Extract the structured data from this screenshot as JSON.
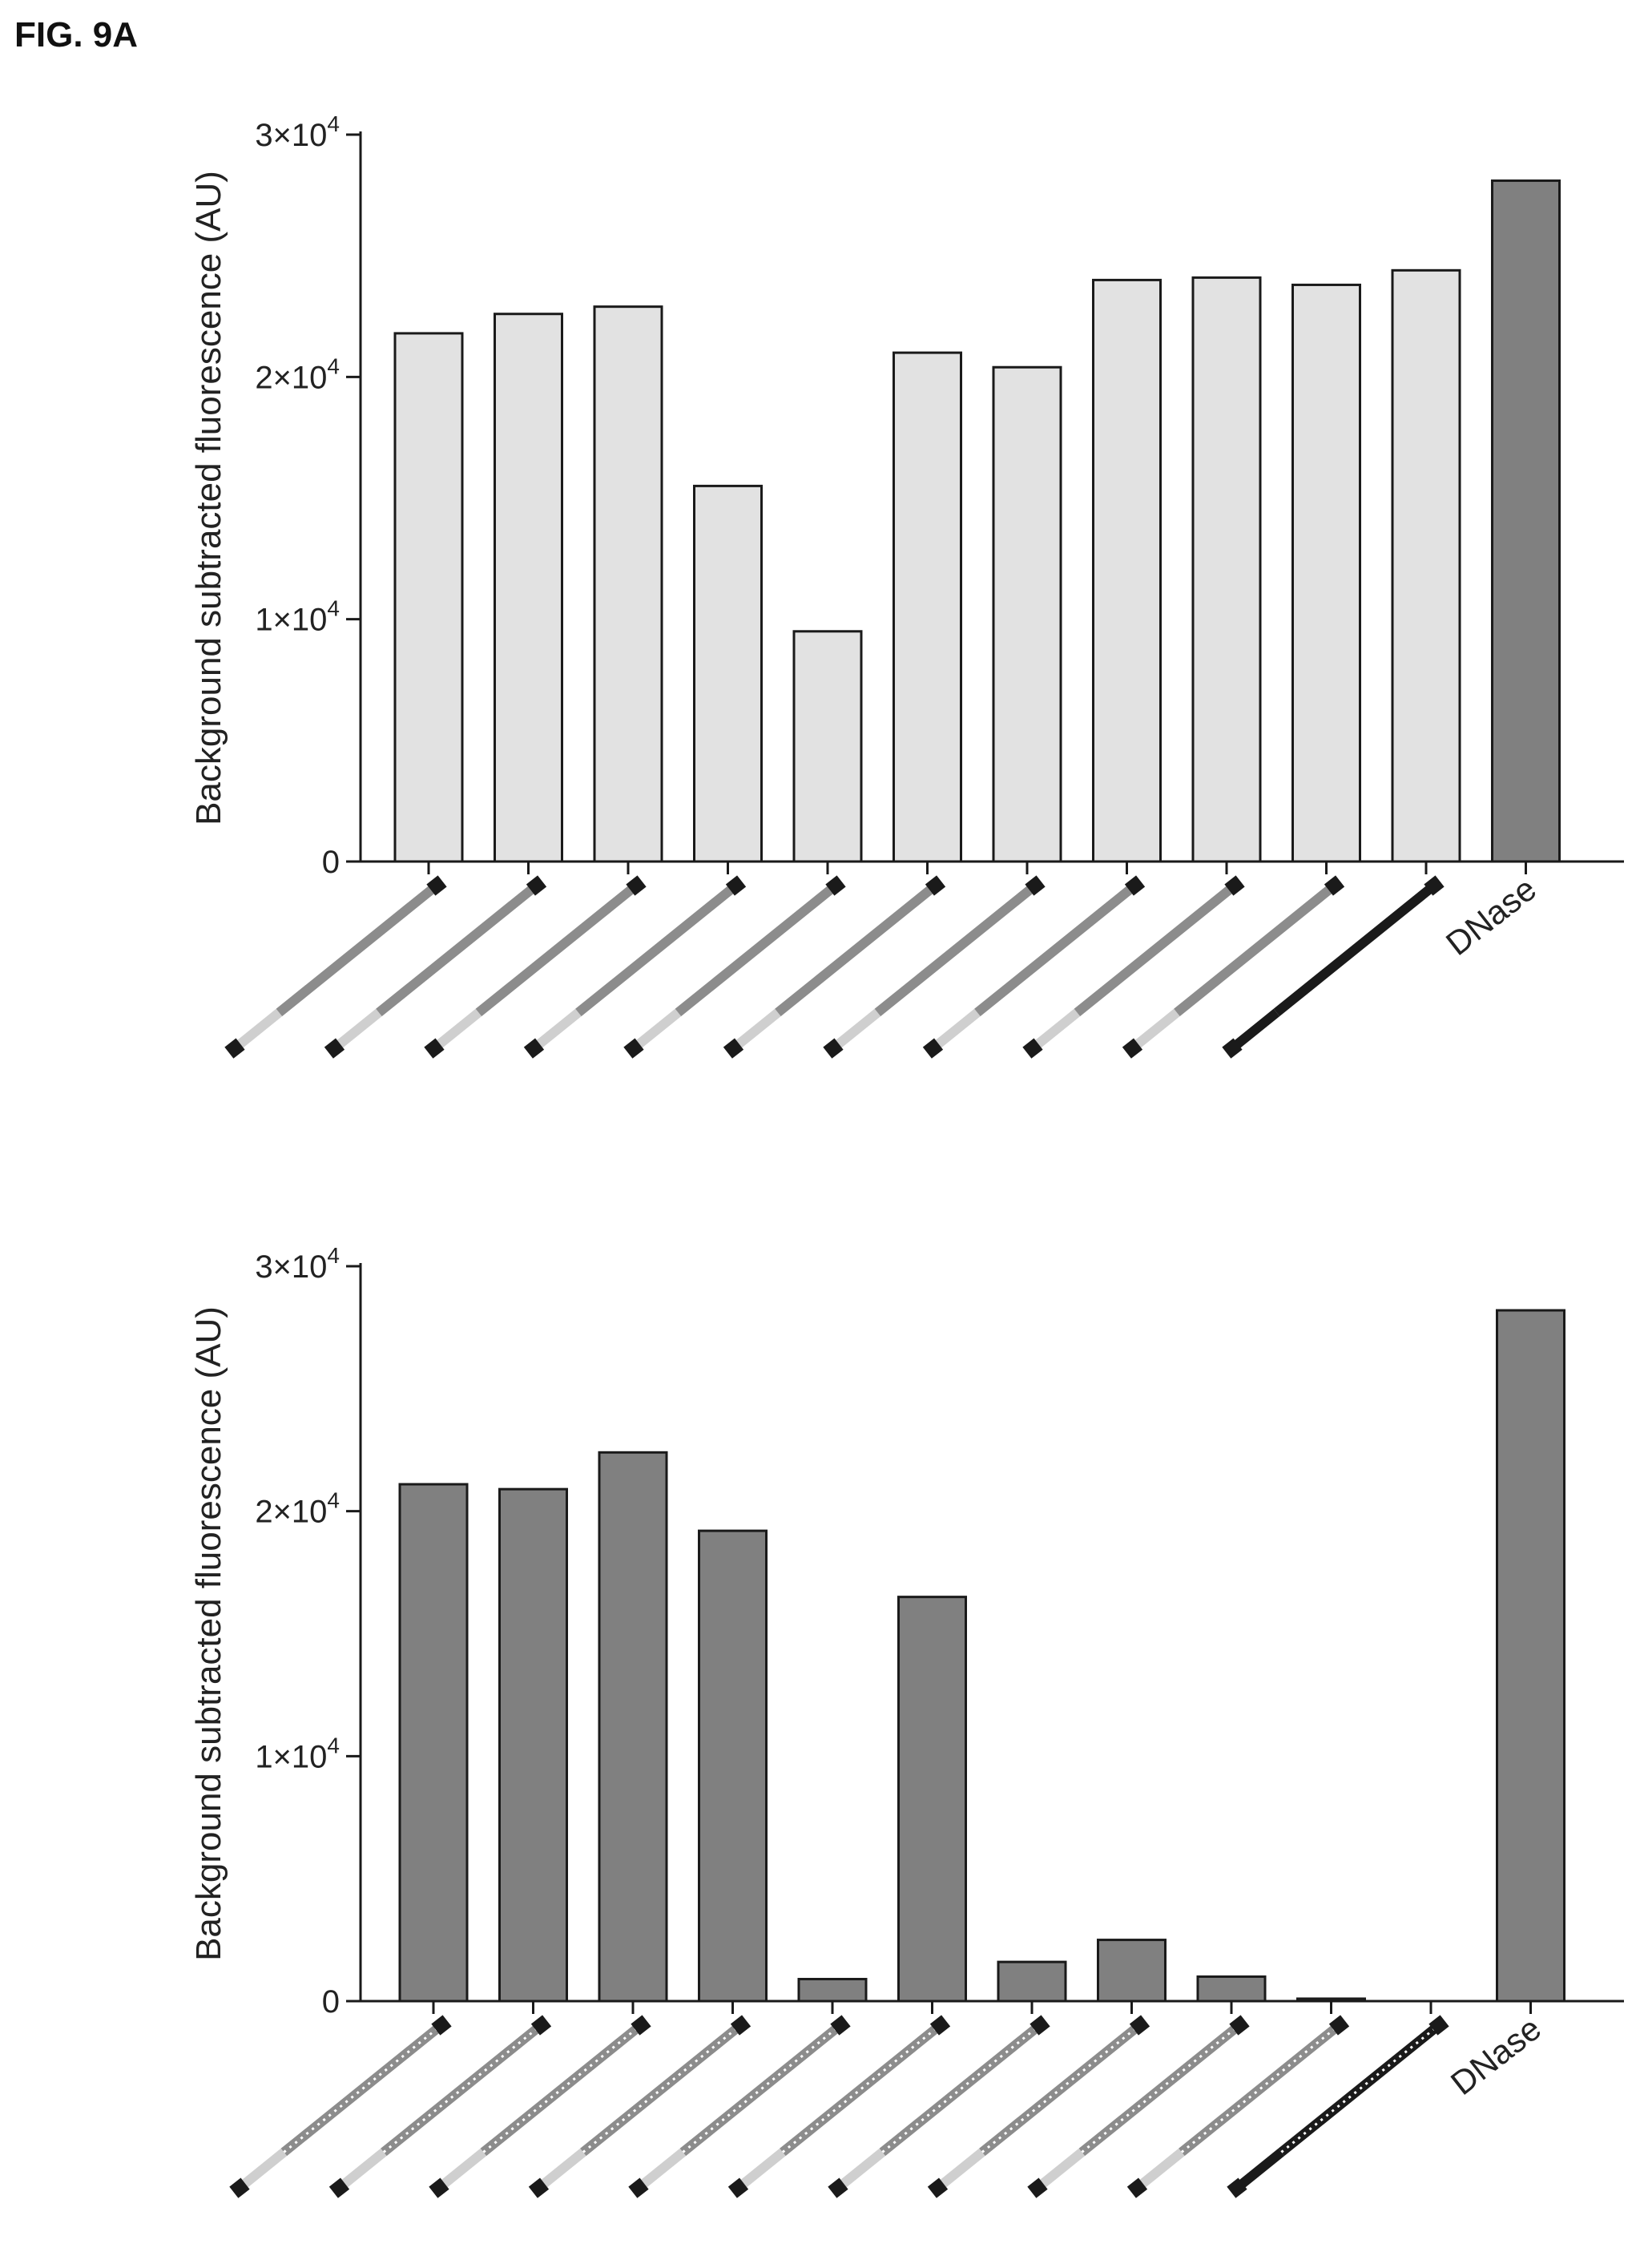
{
  "figure_label": "FIG. 9A",
  "colors": {
    "light_fill": "#e2e2e2",
    "dark_fill": "#808080",
    "edge": "#1a1a1a"
  },
  "chart_data": [
    {
      "type": "bar",
      "ylabel": "Background subtracted fluorescence (AU)",
      "ylim": [
        0,
        30000
      ],
      "yticks": [
        0,
        10000,
        20000,
        30000
      ],
      "ytick_labels": [
        {
          "base": "0",
          "exp": ""
        },
        {
          "base": "1×10",
          "exp": "4"
        },
        {
          "base": "2×10",
          "exp": "4"
        },
        {
          "base": "3×10",
          "exp": "4"
        }
      ],
      "categories": [
        "",
        "",
        "",
        "",
        "",
        "",
        "",
        "",
        "",
        "",
        "",
        "DNase"
      ],
      "category_icons": [
        "ss-probe-icon",
        "ss-probe-icon",
        "ss-probe-icon",
        "ss-probe-icon",
        "ss-probe-icon",
        "ss-probe-icon",
        "ss-probe-icon",
        "ss-probe-icon",
        "ss-probe-icon",
        "ss-probe-icon",
        "ss-probe-full-icon",
        ""
      ],
      "values": [
        21800,
        22600,
        22900,
        15500,
        9500,
        21000,
        20400,
        24000,
        24100,
        23800,
        24400,
        28100
      ],
      "fills": [
        "light",
        "light",
        "light",
        "light",
        "light",
        "light",
        "light",
        "light",
        "light",
        "light",
        "light",
        "dark"
      ],
      "grid": false
    },
    {
      "type": "bar",
      "ylabel": "Background subtracted fluorescence (AU)",
      "ylim": [
        0,
        30000
      ],
      "yticks": [
        0,
        10000,
        20000,
        30000
      ],
      "ytick_labels": [
        {
          "base": "0",
          "exp": ""
        },
        {
          "base": "1×10",
          "exp": "4"
        },
        {
          "base": "2×10",
          "exp": "4"
        },
        {
          "base": "3×10",
          "exp": "4"
        }
      ],
      "categories": [
        "",
        "",
        "",
        "",
        "",
        "",
        "",
        "",
        "",
        "",
        "",
        "DNase"
      ],
      "category_icons": [
        "ds-probe-icon",
        "ds-probe-icon",
        "ds-probe-icon",
        "ds-probe-icon",
        "ds-probe-icon",
        "ds-probe-icon",
        "ds-probe-icon",
        "ds-probe-icon",
        "ds-probe-icon",
        "ds-probe-icon",
        "ds-probe-full-icon",
        ""
      ],
      "values": [
        21100,
        20900,
        22400,
        19200,
        900,
        16500,
        1600,
        2500,
        1000,
        100,
        0,
        28200
      ],
      "fills": [
        "dark",
        "dark",
        "dark",
        "dark",
        "dark",
        "dark",
        "dark",
        "dark",
        "dark",
        "dark",
        "dark",
        "dark"
      ],
      "grid": false
    }
  ]
}
